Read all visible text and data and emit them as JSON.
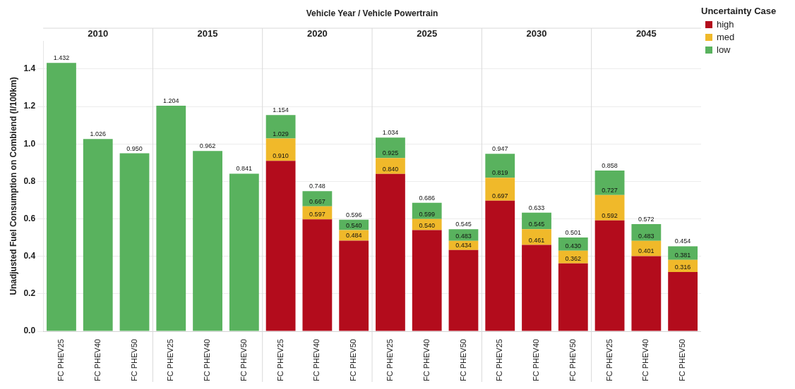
{
  "chart_data": {
    "type": "bar",
    "title": "Vehicle Year / Vehicle Powertrain",
    "ylabel": "Unadjusted Fuel Consumption on Combiend (l/100km)",
    "legend_title": "Uncertainty Case",
    "annotations": [
      "2010",
      "2015",
      "2020",
      "2025",
      "2030",
      "2045",
      "1.029",
      "0.667",
      "0.540",
      "0.925",
      "0.599",
      "0.483",
      "0.819",
      "0.545",
      "0.430",
      "0.727",
      "0.483",
      "0.381"
    ],
    "categories": [
      "FC PHEV25",
      "FC PHEV40",
      "FC PHEV50",
      "FC PHEV25",
      "FC PHEV40",
      "FC PHEV50",
      "FC PHEV25",
      "FC PHEV40",
      "FC PHEV50",
      "FC PHEV25",
      "FC PHEV40",
      "FC PHEV50",
      "FC PHEV25",
      "FC PHEV40",
      "FC PHEV50",
      "FC PHEV25",
      "FC PHEV40",
      "FC PHEV50"
    ],
    "stacked": true,
    "series": [
      {
        "name": "high",
        "color": "#b30c1c",
        "values": [
          null,
          null,
          null,
          null,
          null,
          null,
          0.91,
          0.597,
          0.484,
          0.84,
          0.54,
          0.434,
          0.697,
          0.461,
          0.362,
          0.592,
          0.401,
          0.316
        ],
        "value_labels": [
          null,
          null,
          null,
          null,
          null,
          null,
          "0.910",
          "0.597",
          "0.484",
          "0.840",
          "0.540",
          "0.434",
          "0.697",
          "0.461",
          "0.362",
          "0.592",
          "0.401",
          "0.316"
        ]
      },
      {
        "name": "med",
        "color": "#f0b92a",
        "values": [
          null,
          null,
          null,
          null,
          null,
          null,
          0.119,
          0.07,
          0.056,
          0.085,
          0.059,
          0.049,
          0.122,
          0.084,
          0.068,
          0.135,
          0.082,
          0.065
        ]
      },
      {
        "name": "low",
        "color": "#59b25e",
        "values": [
          1.432,
          1.026,
          0.95,
          1.204,
          0.962,
          0.841,
          0.125,
          0.081,
          0.056,
          0.109,
          0.087,
          0.062,
          0.128,
          0.088,
          0.071,
          0.131,
          0.089,
          0.073
        ]
      }
    ],
    "totals": [
      "1.432",
      "1.026",
      "0.950",
      "1.204",
      "0.962",
      "0.841",
      "1.154",
      "0.748",
      "0.596",
      "1.034",
      "0.686",
      "0.545",
      "0.947",
      "0.633",
      "0.501",
      "0.858",
      "0.572",
      "0.454"
    ],
    "ylim": [
      0,
      1.55
    ],
    "yticks": [
      {
        "value": 0,
        "label": "0.0"
      },
      {
        "value": 0.2,
        "label": "0.2"
      },
      {
        "value": 0.4,
        "label": "0.4"
      },
      {
        "value": 0.6,
        "label": "0.6"
      },
      {
        "value": 0.8,
        "label": "0.8"
      },
      {
        "value": 1.0,
        "label": "1.0"
      },
      {
        "value": 1.2,
        "label": "1.2"
      },
      {
        "value": 1.4,
        "label": "1.4"
      }
    ],
    "grid": "y",
    "legend": "top right"
  }
}
